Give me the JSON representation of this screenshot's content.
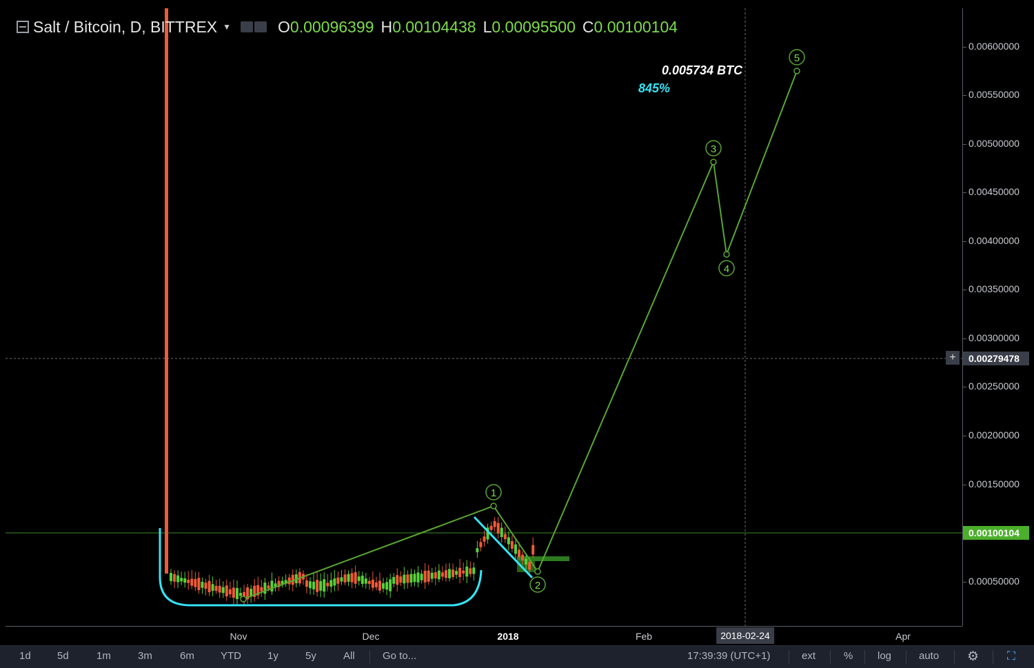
{
  "header": {
    "symbol": "Salt / Bitcoin, D, BITTREX",
    "ohlc": {
      "o_label": "O",
      "o_value": "0.00096399",
      "h_label": "H",
      "h_value": "0.00104438",
      "l_label": "L",
      "l_value": "0.00095500",
      "c_label": "C",
      "c_value": "0.00100104"
    }
  },
  "price_axis": {
    "labels": [
      "0.00600000",
      "0.00550000",
      "0.00500000",
      "0.00450000",
      "0.00400000",
      "0.00350000",
      "0.00300000",
      "0.00250000",
      "0.00200000",
      "0.00150000",
      "0.00050000"
    ],
    "last_price_badge": "0.00100104",
    "crosshair_badge": "0.00279478",
    "crosshair_plus": "+"
  },
  "time_axis": {
    "labels": [
      "Nov",
      "Dec",
      "2018",
      "Feb",
      "Apr"
    ],
    "crosshair_date": "2018-02-24"
  },
  "annotations": {
    "target_price": "0.005734 BTC",
    "target_percent": "845%",
    "wave_labels": [
      "1",
      "2",
      "3",
      "4",
      "5"
    ]
  },
  "toolbar": {
    "ranges": [
      "1d",
      "5d",
      "1m",
      "3m",
      "6m",
      "YTD",
      "1y",
      "5y",
      "All"
    ],
    "goto": "Go to...",
    "clock": "17:39:39 (UTC+1)",
    "ext": "ext",
    "percent": "%",
    "log": "log",
    "auto": "auto",
    "settings_icon": "gear-icon",
    "fullscreen_icon": "fullscreen-icon"
  },
  "colors": {
    "background": "#000000",
    "up": "#57d13a",
    "down": "#ef5a37",
    "wave": "#5aa632",
    "cup": "#35e4f5",
    "last_price": "#4caf2c"
  },
  "chart_data": {
    "type": "candlestick",
    "title": "Salt / Bitcoin, D, BITTREX",
    "yscale": "linear",
    "ylim": [
      0.0001,
      0.00645
    ],
    "grid": false,
    "candles_visible": "Oct 2017 – Jan 2018 (daily)",
    "last_close": 0.00100104,
    "elliott_wave_projection": [
      {
        "label": "1",
        "price": 0.00127
      },
      {
        "label": "2",
        "price": 0.0006
      },
      {
        "label": "3",
        "price": 0.0048
      },
      {
        "label": "4",
        "price": 0.00385
      },
      {
        "label": "5",
        "price": 0.005734
      }
    ],
    "target_price": 0.005734,
    "target_percent": 845
  }
}
